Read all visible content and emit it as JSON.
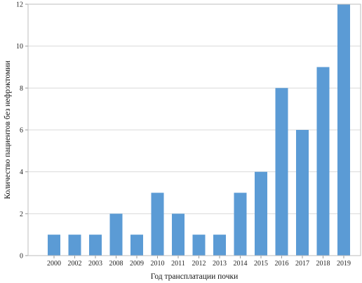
{
  "chart_data": {
    "type": "bar",
    "categories": [
      "2000",
      "2002",
      "2003",
      "2008",
      "2009",
      "2010",
      "2011",
      "2012",
      "2013",
      "2014",
      "2015",
      "2016",
      "2017",
      "2018",
      "2019"
    ],
    "values": [
      1,
      1,
      1,
      2,
      1,
      3,
      2,
      1,
      1,
      3,
      4,
      8,
      6,
      9,
      12
    ],
    "xlabel": "Год трансплатации почки",
    "ylabel": "Количество пациентов без нефрэктомии",
    "ylim": [
      0,
      12
    ],
    "yticks": [
      0,
      2,
      4,
      6,
      8,
      10,
      12
    ],
    "grid": true,
    "bar_color": "#5b9bd5"
  }
}
